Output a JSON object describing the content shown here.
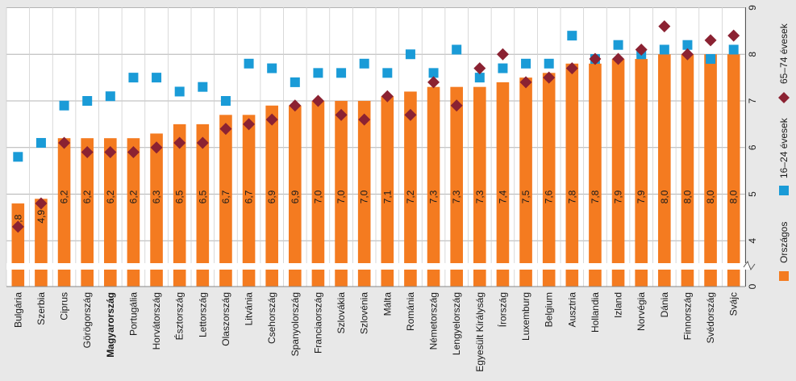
{
  "chart_data": {
    "type": "bar",
    "categories": [
      "Bulgária",
      "Szerbia",
      "Ciprus",
      "Görögország",
      "Magyarország",
      "Portugália",
      "Horvátország",
      "Észtország",
      "Lettország",
      "Olaszország",
      "Litvánia",
      "Csehország",
      "Spanyolország",
      "Franciaország",
      "Szlovákia",
      "Szlovénia",
      "Málta",
      "Románia",
      "Németország",
      "Lengyelország",
      "Egyesült Királyság",
      "Írország",
      "Luxemburg",
      "Belgium",
      "Ausztria",
      "Hollandia",
      "Izland",
      "Norvégia",
      "Dánia",
      "Finnország",
      "Svédország",
      "Svájc"
    ],
    "highlight_category": "Magyarország",
    "series": [
      {
        "name": "Országos",
        "type": "bar",
        "color": "#f47b20",
        "values": [
          4.8,
          4.9,
          6.2,
          6.2,
          6.2,
          6.2,
          6.3,
          6.5,
          6.5,
          6.7,
          6.7,
          6.9,
          6.9,
          7.0,
          7.0,
          7.0,
          7.1,
          7.2,
          7.3,
          7.3,
          7.3,
          7.4,
          7.5,
          7.6,
          7.8,
          7.8,
          7.9,
          7.9,
          8.0,
          8.0,
          8.0,
          8.0
        ],
        "labels": [
          "4,8",
          "4,9",
          "6,2",
          "6,2",
          "6,2",
          "6,2",
          "6,3",
          "6,5",
          "6,5",
          "6,7",
          "6,7",
          "6,9",
          "6,9",
          "7,0",
          "7,0",
          "7,0",
          "7,1",
          "7,2",
          "7,3",
          "7,3",
          "7,3",
          "7,4",
          "7,5",
          "7,6",
          "7,8",
          "7,8",
          "7,9",
          "7,9",
          "8,0",
          "8,0",
          "8,0",
          "8,0"
        ]
      },
      {
        "name": "16–24 évesek",
        "type": "scatter",
        "marker": "square",
        "color": "#1a9bd7",
        "values": [
          5.8,
          6.1,
          6.9,
          7.0,
          7.1,
          7.5,
          7.5,
          7.2,
          7.3,
          7.0,
          7.8,
          7.7,
          7.4,
          7.6,
          7.6,
          7.8,
          7.6,
          8.0,
          7.6,
          8.1,
          7.5,
          7.7,
          7.8,
          7.8,
          8.4,
          7.9,
          8.2,
          8.0,
          8.1,
          8.2,
          7.9,
          8.1
        ]
      },
      {
        "name": "65–74 évesek",
        "type": "scatter",
        "marker": "diamond",
        "color": "#8b2232",
        "values": [
          4.3,
          4.8,
          6.1,
          5.9,
          5.9,
          5.9,
          6.0,
          6.1,
          6.1,
          6.4,
          6.5,
          6.6,
          6.9,
          7.0,
          6.7,
          6.6,
          7.1,
          6.7,
          7.4,
          6.9,
          7.7,
          8.0,
          7.4,
          7.5,
          7.7,
          7.9,
          7.9,
          8.1,
          8.6,
          8.0,
          8.3,
          8.4
        ]
      }
    ],
    "yaxis": {
      "position": "right",
      "ticks": [
        "0",
        "4",
        "5",
        "6",
        "7",
        "8",
        "9"
      ],
      "axis_break": true,
      "ylim": [
        3.5,
        9
      ]
    },
    "legend": {
      "position": "right",
      "orientation": "vertical"
    },
    "grid": true
  }
}
